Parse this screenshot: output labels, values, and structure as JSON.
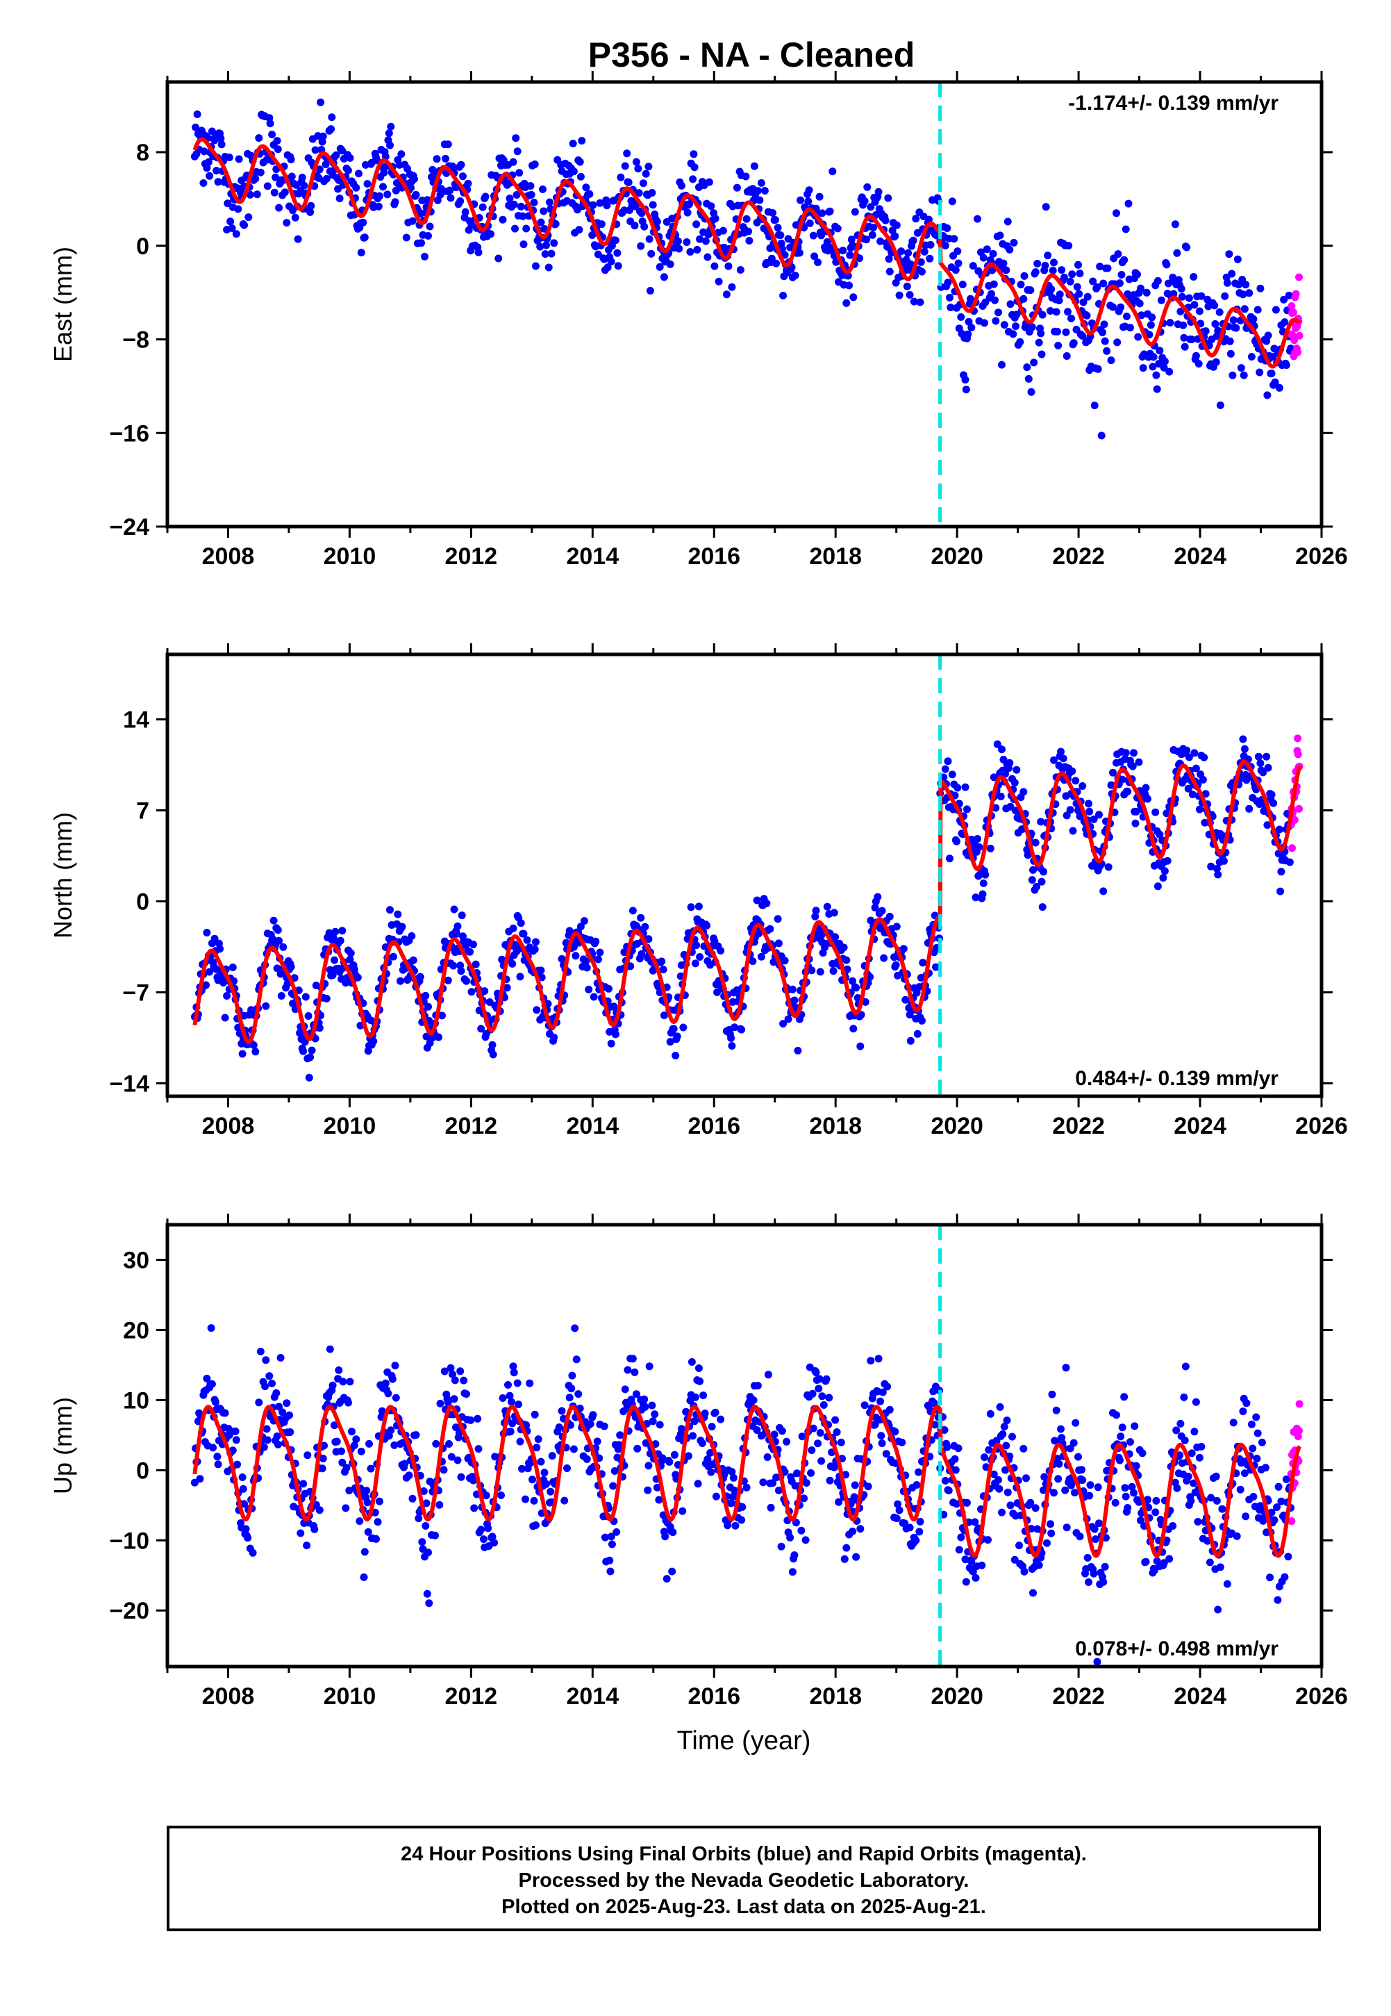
{
  "title": "P356  - NA - Cleaned",
  "xlabel": "Time (year)",
  "footer": {
    "line1": "24 Hour Positions Using Final Orbits (blue) and Rapid Orbits (magenta).",
    "line2": "Processed by the Nevada Geodetic Laboratory.",
    "line3": "Plotted on 2025-Aug-23. Last data on 2025-Aug-21."
  },
  "colors": {
    "final_orbits": "#0000ff",
    "rapid_orbits": "#ff00ff",
    "model": "#ff0000",
    "event_line": "#00e5e5",
    "frame": "#000000"
  },
  "chart_data": [
    {
      "type": "scatter",
      "ylabel": "East (mm)",
      "rate_text": "-1.174+/- 0.139 mm/yr",
      "rate_position": "top-right",
      "xlim": [
        2007.0,
        2026.0
      ],
      "ylim": [
        -24,
        14
      ],
      "x_ticks": [
        2008,
        2010,
        2012,
        2014,
        2016,
        2018,
        2020,
        2022,
        2024,
        2026
      ],
      "y_ticks": [
        -24,
        -16,
        -8,
        0,
        8
      ],
      "event_x": 2019.72,
      "data_start": 2007.45,
      "rapid_start": 2025.5,
      "data_end": 2025.64,
      "model": {
        "before_event": {
          "offset": 1.8,
          "rate": -0.6,
          "annual_amplitude": 2.3,
          "annual_phase": 0.4
        },
        "after_event": {
          "offset": 0.8,
          "rate": -0.95,
          "annual_amplitude": 2.0,
          "annual_phase": 0.4
        }
      },
      "scatter": {
        "noise": 1.8,
        "after_event_noise": 2.7
      },
      "grid": false
    },
    {
      "type": "scatter",
      "ylabel": "North (mm)",
      "rate_text": "0.484+/- 0.139 mm/yr",
      "rate_position": "bottom-right",
      "xlim": [
        2007.0,
        2026.0
      ],
      "ylim": [
        -15,
        19
      ],
      "x_ticks": [
        2008,
        2010,
        2012,
        2014,
        2016,
        2018,
        2020,
        2022,
        2024,
        2026
      ],
      "y_ticks": [
        -14,
        -7,
        0,
        7,
        14
      ],
      "event_x": 2019.72,
      "data_start": 2007.45,
      "rapid_start": 2025.5,
      "data_end": 2025.64,
      "model": {
        "before_event": {
          "offset": -5.2,
          "rate": 0.22,
          "annual_amplitude": 3.3,
          "annual_phase": 0.55
        },
        "after_event": {
          "offset": 5.0,
          "rate": 0.3,
          "annual_amplitude": 3.2,
          "annual_phase": 0.55
        }
      },
      "scatter": {
        "noise": 1.2,
        "after_event_noise": 1.3
      },
      "grid": false
    },
    {
      "type": "scatter",
      "ylabel": "Up (mm)",
      "rate_text": "0.078+/- 0.498 mm/yr",
      "rate_position": "bottom-right",
      "xlim": [
        2007.0,
        2026.0
      ],
      "ylim": [
        -28,
        35
      ],
      "x_ticks": [
        2008,
        2010,
        2012,
        2014,
        2016,
        2018,
        2020,
        2022,
        2024,
        2026
      ],
      "y_ticks": [
        -20,
        -10,
        0,
        10,
        20,
        30
      ],
      "event_x": 2019.72,
      "data_start": 2007.45,
      "rapid_start": 2025.5,
      "data_end": 2025.64,
      "model": {
        "before_event": {
          "offset": 1.8,
          "rate": 0.0,
          "annual_amplitude": 7.4,
          "annual_phase": 0.5
        },
        "after_event": {
          "offset": -3.5,
          "rate": 0.0,
          "annual_amplitude": 7.3,
          "annual_phase": 0.5
        }
      },
      "scatter": {
        "noise": 4.0,
        "after_event_noise": 4.5
      },
      "grid": false
    }
  ]
}
